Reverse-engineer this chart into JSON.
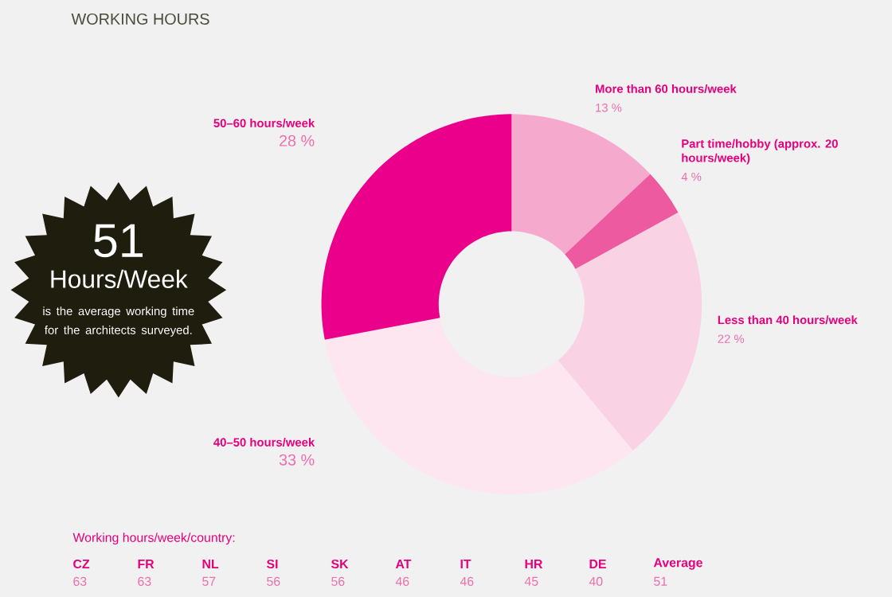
{
  "chart_data": [
    {
      "type": "donut",
      "title": "WORKING HOURS",
      "categories": [
        "More than 60 hours/week",
        "Part time/hobby (approx. 20 hours/week)",
        "Less than 40 hours/week",
        "40–50 hours/week",
        "50–60 hours/week"
      ],
      "values": [
        13,
        4,
        22,
        33,
        28
      ],
      "value_labels": [
        "13 %",
        "4 %",
        "22 %",
        "33 %",
        "28 %"
      ],
      "colors": [
        "#f5a9cd",
        "#ee5aa0",
        "#f9d3e4",
        "#fde6ef",
        "#ea008a"
      ],
      "annotations": [
        "51",
        "Hours/Week",
        "is the average working time for the architects surveyed."
      ]
    },
    {
      "type": "other",
      "title": "Working hours/week/country:",
      "categories": [
        "CZ",
        "FR",
        "NL",
        "SI",
        "SK",
        "AT",
        "IT",
        "HR",
        "DE",
        "Average"
      ],
      "values": [
        63,
        63,
        57,
        56,
        56,
        46,
        46,
        45,
        40,
        51
      ],
      "data_labels": true
    }
  ]
}
